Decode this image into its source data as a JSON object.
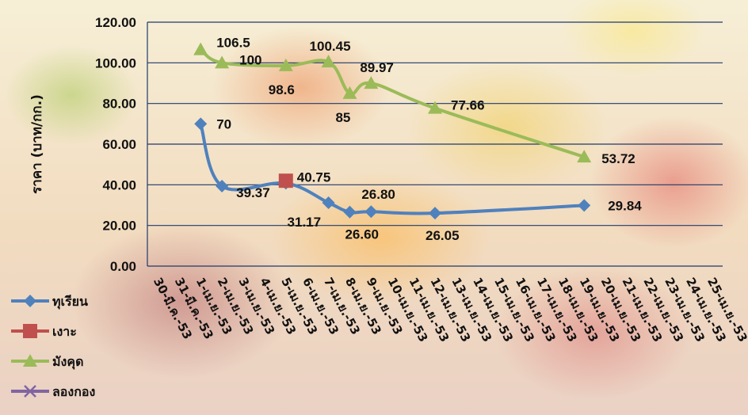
{
  "chart_data": {
    "type": "line",
    "title": "",
    "ylabel": "ราคา (บาท/กก.)",
    "xlabel": "",
    "ylim": [
      0,
      120
    ],
    "yticks": [
      "0.00",
      "20.00",
      "40.00",
      "60.00",
      "80.00",
      "100.00",
      "120.00"
    ],
    "categories": [
      "30-มี.ค.-53",
      "31-มี.ค.-53",
      "1-เม.ย.-53",
      "2-เม.ย.-53",
      "3-เม.ย.-53",
      "4-เม.ย.-53",
      "5-เม.ย.-53",
      "6-เม.ย.-53",
      "7-เม.ย.-53",
      "8-เม.ย.-53",
      "9-เม.ย.-53",
      "10-เม.ย.-53",
      "11-เม.ย.-53",
      "12-เม.ย.-53",
      "13-เม.ย.-53",
      "14-เม.ย.-53",
      "15-เม.ย.-53",
      "16-เม.ย.-53",
      "17-เม.ย.-53",
      "18-เม.ย.-53",
      "19-เม.ย.-53",
      "20-เม.ย.-53",
      "21-เม.ย.-53",
      "22-เม.ย.-53",
      "23-เม.ย.-53",
      "24-เม.ย.-53",
      "25-เม.ย.-53"
    ],
    "legend_position": "left-bottom",
    "grid": true,
    "series": [
      {
        "name": "ทุเรียน",
        "color": "#4f81bd",
        "marker": "diamond",
        "points": [
          [
            2,
            70,
            "70"
          ],
          [
            3,
            39.37,
            "39.37"
          ],
          [
            6,
            40.75,
            "40.75"
          ],
          [
            8,
            31.17,
            "31.17"
          ],
          [
            9,
            26.6,
            "26.60"
          ],
          [
            10,
            26.8,
            "26.80"
          ],
          [
            13,
            26.05,
            "26.05"
          ],
          [
            20,
            29.84,
            "29.84"
          ]
        ]
      },
      {
        "name": "เงาะ",
        "color": "#c0504d",
        "marker": "square",
        "points": [
          [
            6,
            42,
            ""
          ]
        ]
      },
      {
        "name": "มังคุด",
        "color": "#9bbb59",
        "marker": "triangle",
        "points": [
          [
            2,
            106.5,
            "106.5"
          ],
          [
            3,
            100,
            "100"
          ],
          [
            6,
            98.6,
            "98.6"
          ],
          [
            8,
            100.45,
            "100.45"
          ],
          [
            9,
            85,
            "85"
          ],
          [
            10,
            89.97,
            "89.97"
          ],
          [
            13,
            77.66,
            "77.66"
          ],
          [
            20,
            53.72,
            "53.72"
          ]
        ]
      },
      {
        "name": "ลองกอง",
        "color": "#8064a2",
        "marker": "x",
        "points": []
      }
    ]
  }
}
